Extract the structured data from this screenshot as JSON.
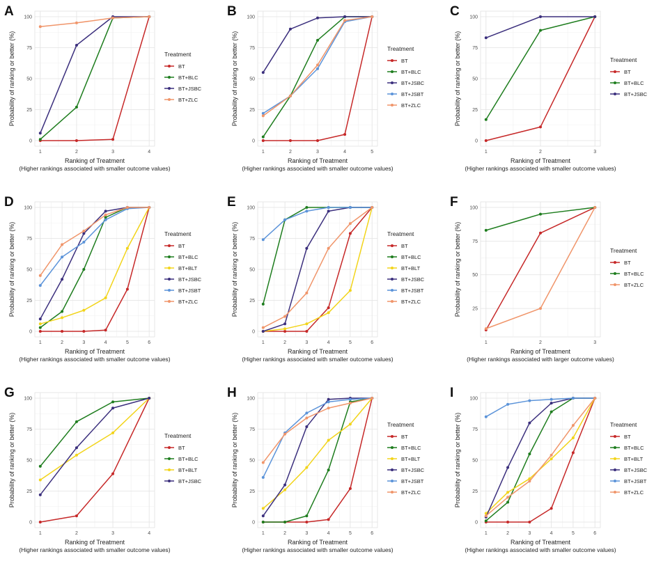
{
  "colors": {
    "BT": "#c62828",
    "BT+BLC": "#1e7d1e",
    "BT+BLT": "#f2d41a",
    "BT+JSBC": "#3b2f7d",
    "BT+JSBT": "#5b93d9",
    "BT+ZLC": "#f0956a",
    "grid_major": "#e2e2e2",
    "grid_minor": "#f0f0f0",
    "axis_text": "#4d4d4d",
    "panel_bg": "#ffffff"
  },
  "chart_data": [
    {
      "label": "A",
      "type": "line",
      "xlabel": "Ranking of Treatment",
      "xsub": "(Higher rankings associated with smaller outcome values)",
      "ylabel": "Probability of ranking or better (%)",
      "x": [
        1,
        2,
        3,
        4
      ],
      "ylim": [
        0,
        100
      ],
      "yticks": [
        0,
        25,
        50,
        75,
        100
      ],
      "legend_title": "Treatment",
      "series": [
        {
          "name": "BT",
          "values": [
            0,
            0,
            1,
            100
          ]
        },
        {
          "name": "BT+BLC",
          "values": [
            1,
            27,
            99,
            100
          ]
        },
        {
          "name": "BT+JSBC",
          "values": [
            6,
            77,
            100,
            100
          ]
        },
        {
          "name": "BT+ZLC",
          "values": [
            92,
            95,
            99,
            100
          ]
        }
      ]
    },
    {
      "label": "B",
      "type": "line",
      "xlabel": "Ranking of Treatment",
      "xsub": "(Higher rankings associated with smaller outcome values)",
      "ylabel": "Probability of ranking or better (%)",
      "x": [
        1,
        2,
        3,
        4,
        5
      ],
      "ylim": [
        0,
        100
      ],
      "yticks": [
        0,
        25,
        50,
        75,
        100
      ],
      "legend_title": "Treatment",
      "series": [
        {
          "name": "BT",
          "values": [
            0,
            0,
            0,
            5,
            100
          ]
        },
        {
          "name": "BT+BLC",
          "values": [
            3,
            36,
            81,
            100,
            100
          ]
        },
        {
          "name": "BT+JSBC",
          "values": [
            55,
            90,
            99,
            100,
            100
          ]
        },
        {
          "name": "BT+JSBT",
          "values": [
            22,
            36,
            58,
            96,
            100
          ]
        },
        {
          "name": "BT+ZLC",
          "values": [
            20,
            36,
            61,
            97,
            100
          ]
        }
      ]
    },
    {
      "label": "C",
      "type": "line",
      "xlabel": "Ranking of Treatment",
      "xsub": "(Higher rankings associated with smaller outcome values)",
      "ylabel": "Probability of ranking or better (%)",
      "x": [
        1,
        2,
        3
      ],
      "ylim": [
        0,
        100
      ],
      "yticks": [
        0,
        25,
        50,
        75,
        100
      ],
      "legend_title": "Treatment",
      "series": [
        {
          "name": "BT",
          "values": [
            0,
            11,
            100
          ]
        },
        {
          "name": "BT+BLC",
          "values": [
            17,
            89,
            100
          ]
        },
        {
          "name": "BT+JSBC",
          "values": [
            83,
            100,
            100
          ]
        }
      ]
    },
    {
      "label": "D",
      "type": "line",
      "xlabel": "Ranking of Treatment",
      "xsub": "(Higher rankings associated with smaller outcome values)",
      "ylabel": "Probability of ranking or better (%)",
      "x": [
        1,
        2,
        3,
        4,
        5,
        6
      ],
      "ylim": [
        0,
        100
      ],
      "yticks": [
        0,
        25,
        50,
        75,
        100
      ],
      "legend_title": "Treatment",
      "series": [
        {
          "name": "BT",
          "values": [
            0,
            0,
            0,
            1,
            34,
            100
          ]
        },
        {
          "name": "BT+BLC",
          "values": [
            3,
            16,
            50,
            92,
            100,
            100
          ]
        },
        {
          "name": "BT+BLT",
          "values": [
            6,
            11,
            17,
            27,
            67,
            100
          ]
        },
        {
          "name": "BT+JSBC",
          "values": [
            10,
            42,
            79,
            97,
            100,
            100
          ]
        },
        {
          "name": "BT+JSBT",
          "values": [
            37,
            60,
            72,
            90,
            99,
            100
          ]
        },
        {
          "name": "BT+ZLC",
          "values": [
            45,
            70,
            81,
            94,
            100,
            100
          ]
        }
      ]
    },
    {
      "label": "E",
      "type": "line",
      "xlabel": "Ranking of Treatment",
      "xsub": "(Higher rankings associated with smaller outcome values)",
      "ylabel": "Probability of ranking or better (%)",
      "x": [
        1,
        2,
        3,
        4,
        5,
        6
      ],
      "ylim": [
        0,
        100
      ],
      "yticks": [
        0,
        25,
        50,
        75,
        100
      ],
      "legend_title": "Treatment",
      "series": [
        {
          "name": "BT",
          "values": [
            0,
            0,
            0,
            19,
            79,
            100
          ]
        },
        {
          "name": "BT+BLC",
          "values": [
            22,
            90,
            100,
            100,
            100,
            100
          ]
        },
        {
          "name": "BT+BLT",
          "values": [
            0,
            2,
            6,
            15,
            33,
            100
          ]
        },
        {
          "name": "BT+JSBC",
          "values": [
            0,
            6,
            67,
            97,
            100,
            100
          ]
        },
        {
          "name": "BT+JSBT",
          "values": [
            74,
            90,
            97,
            100,
            100,
            100
          ]
        },
        {
          "name": "BT+ZLC",
          "values": [
            3,
            12,
            31,
            67,
            87,
            100
          ]
        }
      ]
    },
    {
      "label": "F",
      "type": "line",
      "xlabel": "Ranking of Treatment",
      "xsub": "(Higher rankings associated with larger outcome values)",
      "ylabel": "Probability of ranking or better (%)",
      "x": [
        1,
        2,
        3
      ],
      "ylim": [
        8,
        100
      ],
      "yticks": [
        25,
        50,
        75,
        100
      ],
      "legend_title": "Treatment",
      "series": [
        {
          "name": "BT",
          "values": [
            9,
            81,
            100
          ]
        },
        {
          "name": "BT+BLC",
          "values": [
            83,
            95,
            100
          ]
        },
        {
          "name": "BT+ZLC",
          "values": [
            10,
            25,
            100
          ]
        }
      ]
    },
    {
      "label": "G",
      "type": "line",
      "xlabel": "Ranking of Treatment",
      "xsub": "(Higher rankings associated with smaller outcome values)",
      "ylabel": "Probability of ranking or better (%)",
      "x": [
        1,
        2,
        3,
        4
      ],
      "ylim": [
        0,
        100
      ],
      "yticks": [
        0,
        25,
        50,
        75,
        100
      ],
      "legend_title": "Treatment",
      "series": [
        {
          "name": "BT",
          "values": [
            0,
            5,
            39,
            100
          ]
        },
        {
          "name": "BT+BLC",
          "values": [
            45,
            81,
            97,
            100
          ]
        },
        {
          "name": "BT+BLT",
          "values": [
            34,
            54,
            72,
            100
          ]
        },
        {
          "name": "BT+JSBC",
          "values": [
            22,
            60,
            92,
            100
          ]
        }
      ]
    },
    {
      "label": "H",
      "type": "line",
      "xlabel": "Ranking of Treatment",
      "xsub": "(Higher rankings associated with smaller outcome values)",
      "ylabel": "Probability of ranking or better (%)",
      "x": [
        1,
        2,
        3,
        4,
        5,
        6
      ],
      "ylim": [
        0,
        100
      ],
      "yticks": [
        0,
        25,
        50,
        75,
        100
      ],
      "legend_title": "Treatment",
      "series": [
        {
          "name": "BT",
          "values": [
            0,
            0,
            0,
            2,
            27,
            100
          ]
        },
        {
          "name": "BT+BLC",
          "values": [
            0,
            0,
            5,
            42,
            97,
            100
          ]
        },
        {
          "name": "BT+BLT",
          "values": [
            11,
            26,
            44,
            66,
            79,
            100
          ]
        },
        {
          "name": "BT+JSBC",
          "values": [
            5,
            30,
            77,
            99,
            100,
            100
          ]
        },
        {
          "name": "BT+JSBT",
          "values": [
            36,
            72,
            88,
            97,
            99,
            100
          ]
        },
        {
          "name": "BT+ZLC",
          "values": [
            48,
            71,
            84,
            92,
            96,
            100
          ]
        }
      ]
    },
    {
      "label": "I",
      "type": "line",
      "xlabel": "Ranking of Treatment",
      "xsub": "(Higher rankings associated with smaller outcome values)",
      "ylabel": "Probability of ranking or better (%)",
      "x": [
        1,
        2,
        3,
        4,
        5,
        6
      ],
      "ylim": [
        0,
        100
      ],
      "yticks": [
        0,
        25,
        50,
        75,
        100
      ],
      "legend_title": "Treatment",
      "series": [
        {
          "name": "BT",
          "values": [
            0,
            0,
            0,
            11,
            56,
            100
          ]
        },
        {
          "name": "BT+BLC",
          "values": [
            1,
            16,
            55,
            89,
            100,
            100
          ]
        },
        {
          "name": "BT+BLT",
          "values": [
            7,
            24,
            35,
            51,
            68,
            100
          ]
        },
        {
          "name": "BT+JSBC",
          "values": [
            4,
            44,
            80,
            96,
            100,
            100
          ]
        },
        {
          "name": "BT+JSBT",
          "values": [
            85,
            95,
            98,
            99,
            100,
            100
          ]
        },
        {
          "name": "BT+ZLC",
          "values": [
            5,
            20,
            33,
            54,
            78,
            100
          ]
        }
      ]
    }
  ]
}
